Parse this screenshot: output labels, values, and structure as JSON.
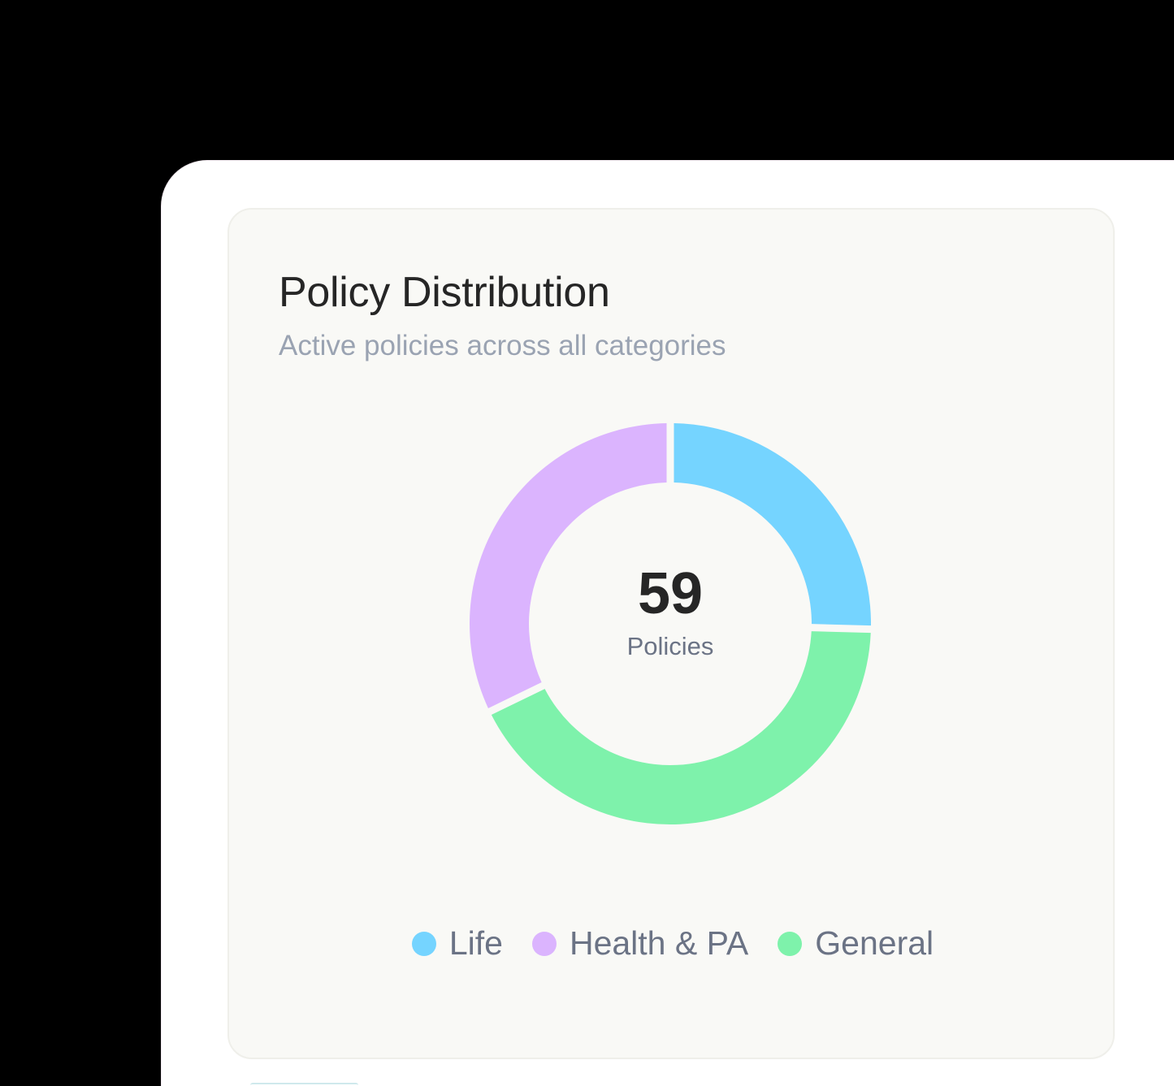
{
  "card": {
    "title": "Policy Distribution",
    "subtitle": "Active policies across all categories"
  },
  "donut": {
    "center_value": "59",
    "center_label": "Policies"
  },
  "legend": [
    {
      "label": "Life",
      "color": "#75d4ff"
    },
    {
      "label": "Health & PA",
      "color": "#dbb4fe"
    },
    {
      "label": "General",
      "color": "#7ef2ab"
    }
  ],
  "colors": {
    "life": "#75d4ff",
    "health": "#dbb4fe",
    "general": "#7ef2ab",
    "card_bg": "#f9f9f6",
    "title": "#262626",
    "subtitle": "#9aa3b2",
    "legend_text": "#6b7385"
  },
  "chart_data": {
    "type": "pie",
    "subtype": "donut",
    "title": "Policy Distribution",
    "subtitle": "Active policies across all categories",
    "categories": [
      "Life",
      "General",
      "Health & PA"
    ],
    "values": [
      15,
      25,
      19
    ],
    "total": 59,
    "total_label": "Policies",
    "colors": [
      "#75d4ff",
      "#7ef2ab",
      "#dbb4fe"
    ],
    "start_angle": "12 o'clock, clockwise",
    "legend_position": "bottom",
    "legend_order": [
      "Life",
      "Health & PA",
      "General"
    ]
  }
}
